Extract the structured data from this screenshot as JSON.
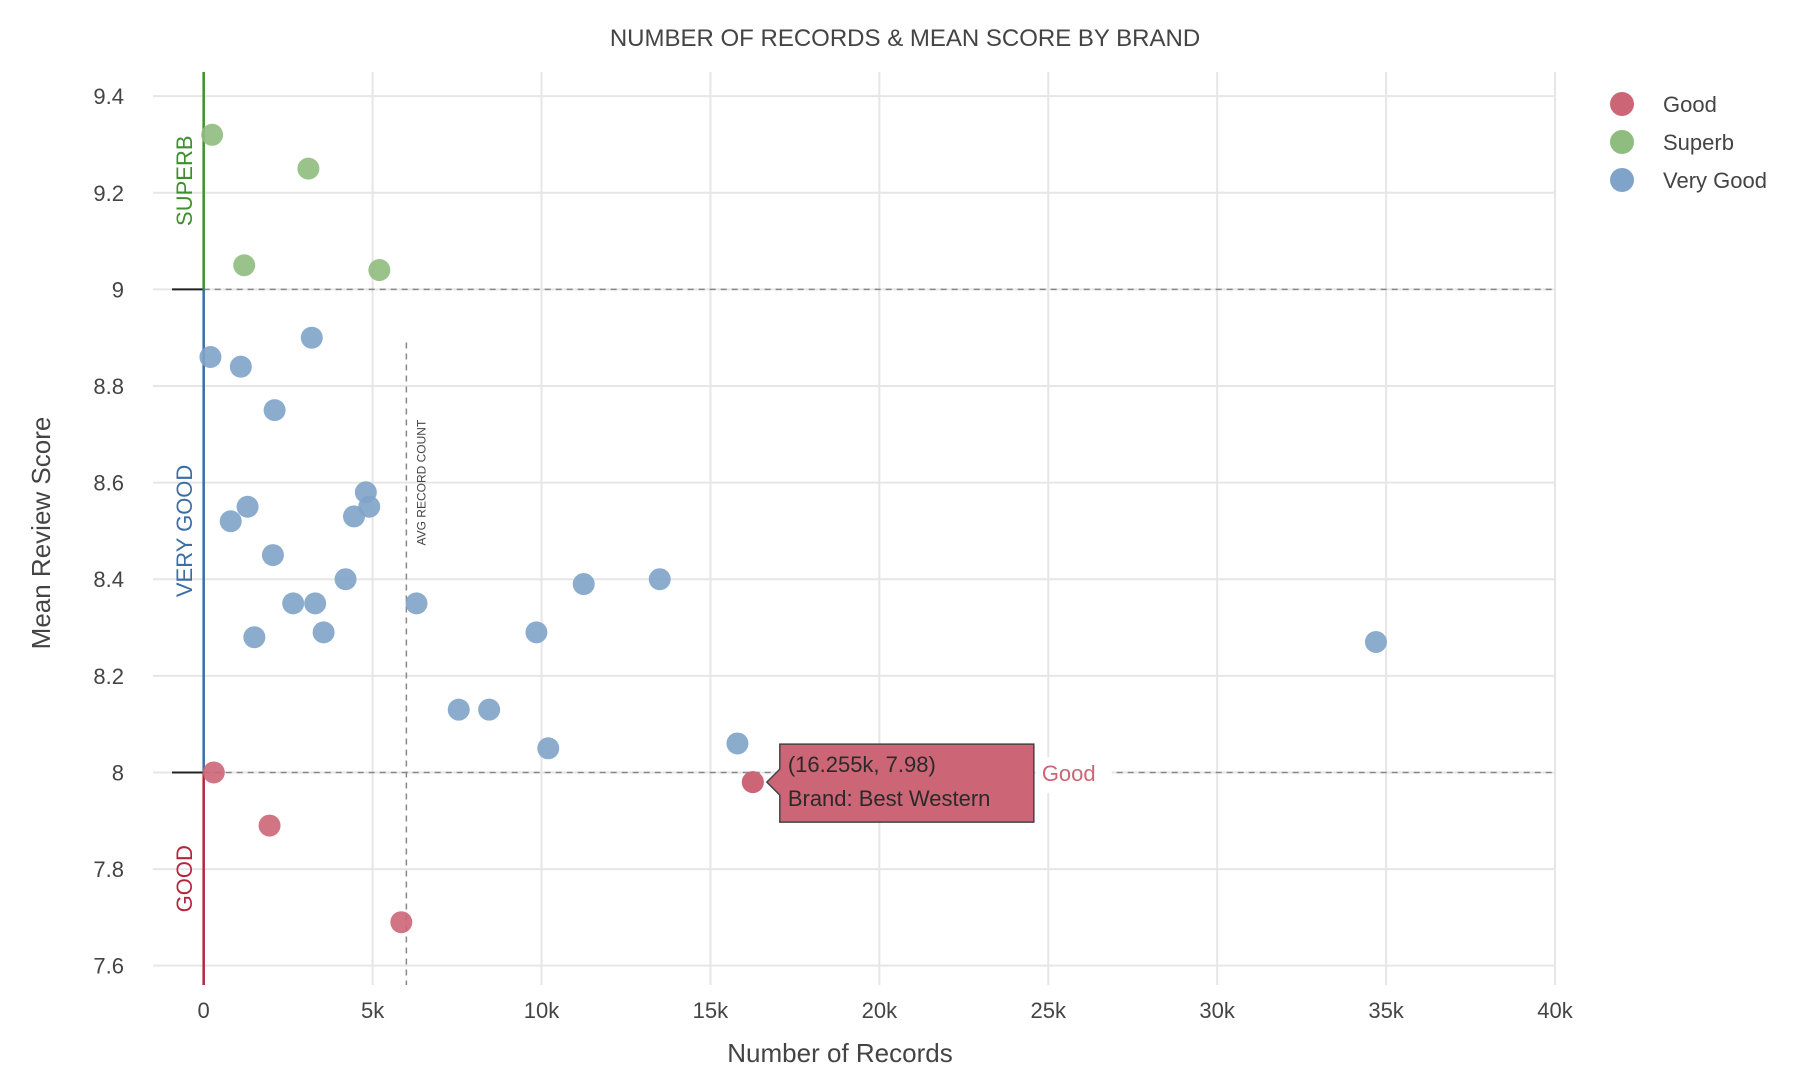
{
  "chart_data": {
    "type": "scatter",
    "title": "NUMBER OF RECORDS & MEAN SCORE BY BRAND",
    "xlabel": "Number of Records",
    "ylabel": "Mean Review Score",
    "xlim": [
      -1500,
      40000
    ],
    "ylim": [
      7.56,
      9.45
    ],
    "x_ticks": [
      0,
      5000,
      10000,
      15000,
      20000,
      25000,
      30000,
      35000,
      40000
    ],
    "x_tick_labels": [
      "0",
      "5k",
      "10k",
      "15k",
      "20k",
      "25k",
      "30k",
      "35k",
      "40k"
    ],
    "y_ticks": [
      7.6,
      7.8,
      8,
      8.2,
      8.4,
      8.6,
      8.8,
      9,
      9.2,
      9.4
    ],
    "y_tick_labels": [
      "7.6",
      "7.8",
      "8",
      "8.2",
      "8.4",
      "8.6",
      "8.8",
      "9",
      "9.2",
      "9.4"
    ],
    "grid": true,
    "legend_position": "top-right",
    "series": [
      {
        "name": "Good",
        "color": "#cc6677",
        "x": [
          300,
          1950,
          5850,
          16255
        ],
        "y": [
          8.0,
          7.89,
          7.69,
          7.98
        ]
      },
      {
        "name": "Superb",
        "color": "#8fbc7f",
        "x": [
          250,
          3100,
          1200,
          5200
        ],
        "y": [
          9.32,
          9.25,
          9.05,
          9.04
        ]
      },
      {
        "name": "Very Good",
        "color": "#7fa3c9",
        "x": [
          200,
          3200,
          1100,
          2100,
          4800,
          4900,
          1300,
          4450,
          800,
          2050,
          4200,
          2650,
          3300,
          6300,
          11250,
          13500,
          1500,
          3550,
          9850,
          34700,
          7550,
          8450,
          15800,
          10200
        ],
        "y": [
          8.86,
          8.9,
          8.84,
          8.75,
          8.58,
          8.55,
          8.55,
          8.53,
          8.52,
          8.45,
          8.4,
          8.35,
          8.35,
          8.35,
          8.39,
          8.4,
          8.28,
          8.29,
          8.29,
          8.27,
          8.13,
          8.13,
          8.06,
          8.05
        ]
      }
    ],
    "reference_lines": [
      {
        "orientation": "horizontal",
        "value": 9
      },
      {
        "orientation": "horizontal",
        "value": 8
      },
      {
        "orientation": "vertical",
        "value": 6000,
        "y_range": [
          7.56,
          8.89
        ],
        "label": "AVG RECORD COUNT"
      }
    ],
    "bands": [
      {
        "label": "SUPERB",
        "y_range": [
          9,
          9.45
        ],
        "color": "#3f8f2f"
      },
      {
        "label": "VERY GOOD",
        "y_range": [
          8,
          9
        ],
        "color": "#3a6ea5"
      },
      {
        "label": "GOOD",
        "y_range": [
          7.56,
          8
        ],
        "color": "#b3263c"
      }
    ],
    "tooltip": {
      "series": "Good",
      "line1": "(16.255k, 7.98)",
      "line2": "Brand: Best Western",
      "series_label": "Good",
      "x": 16255,
      "y": 7.98,
      "color": "#cc6677"
    }
  }
}
